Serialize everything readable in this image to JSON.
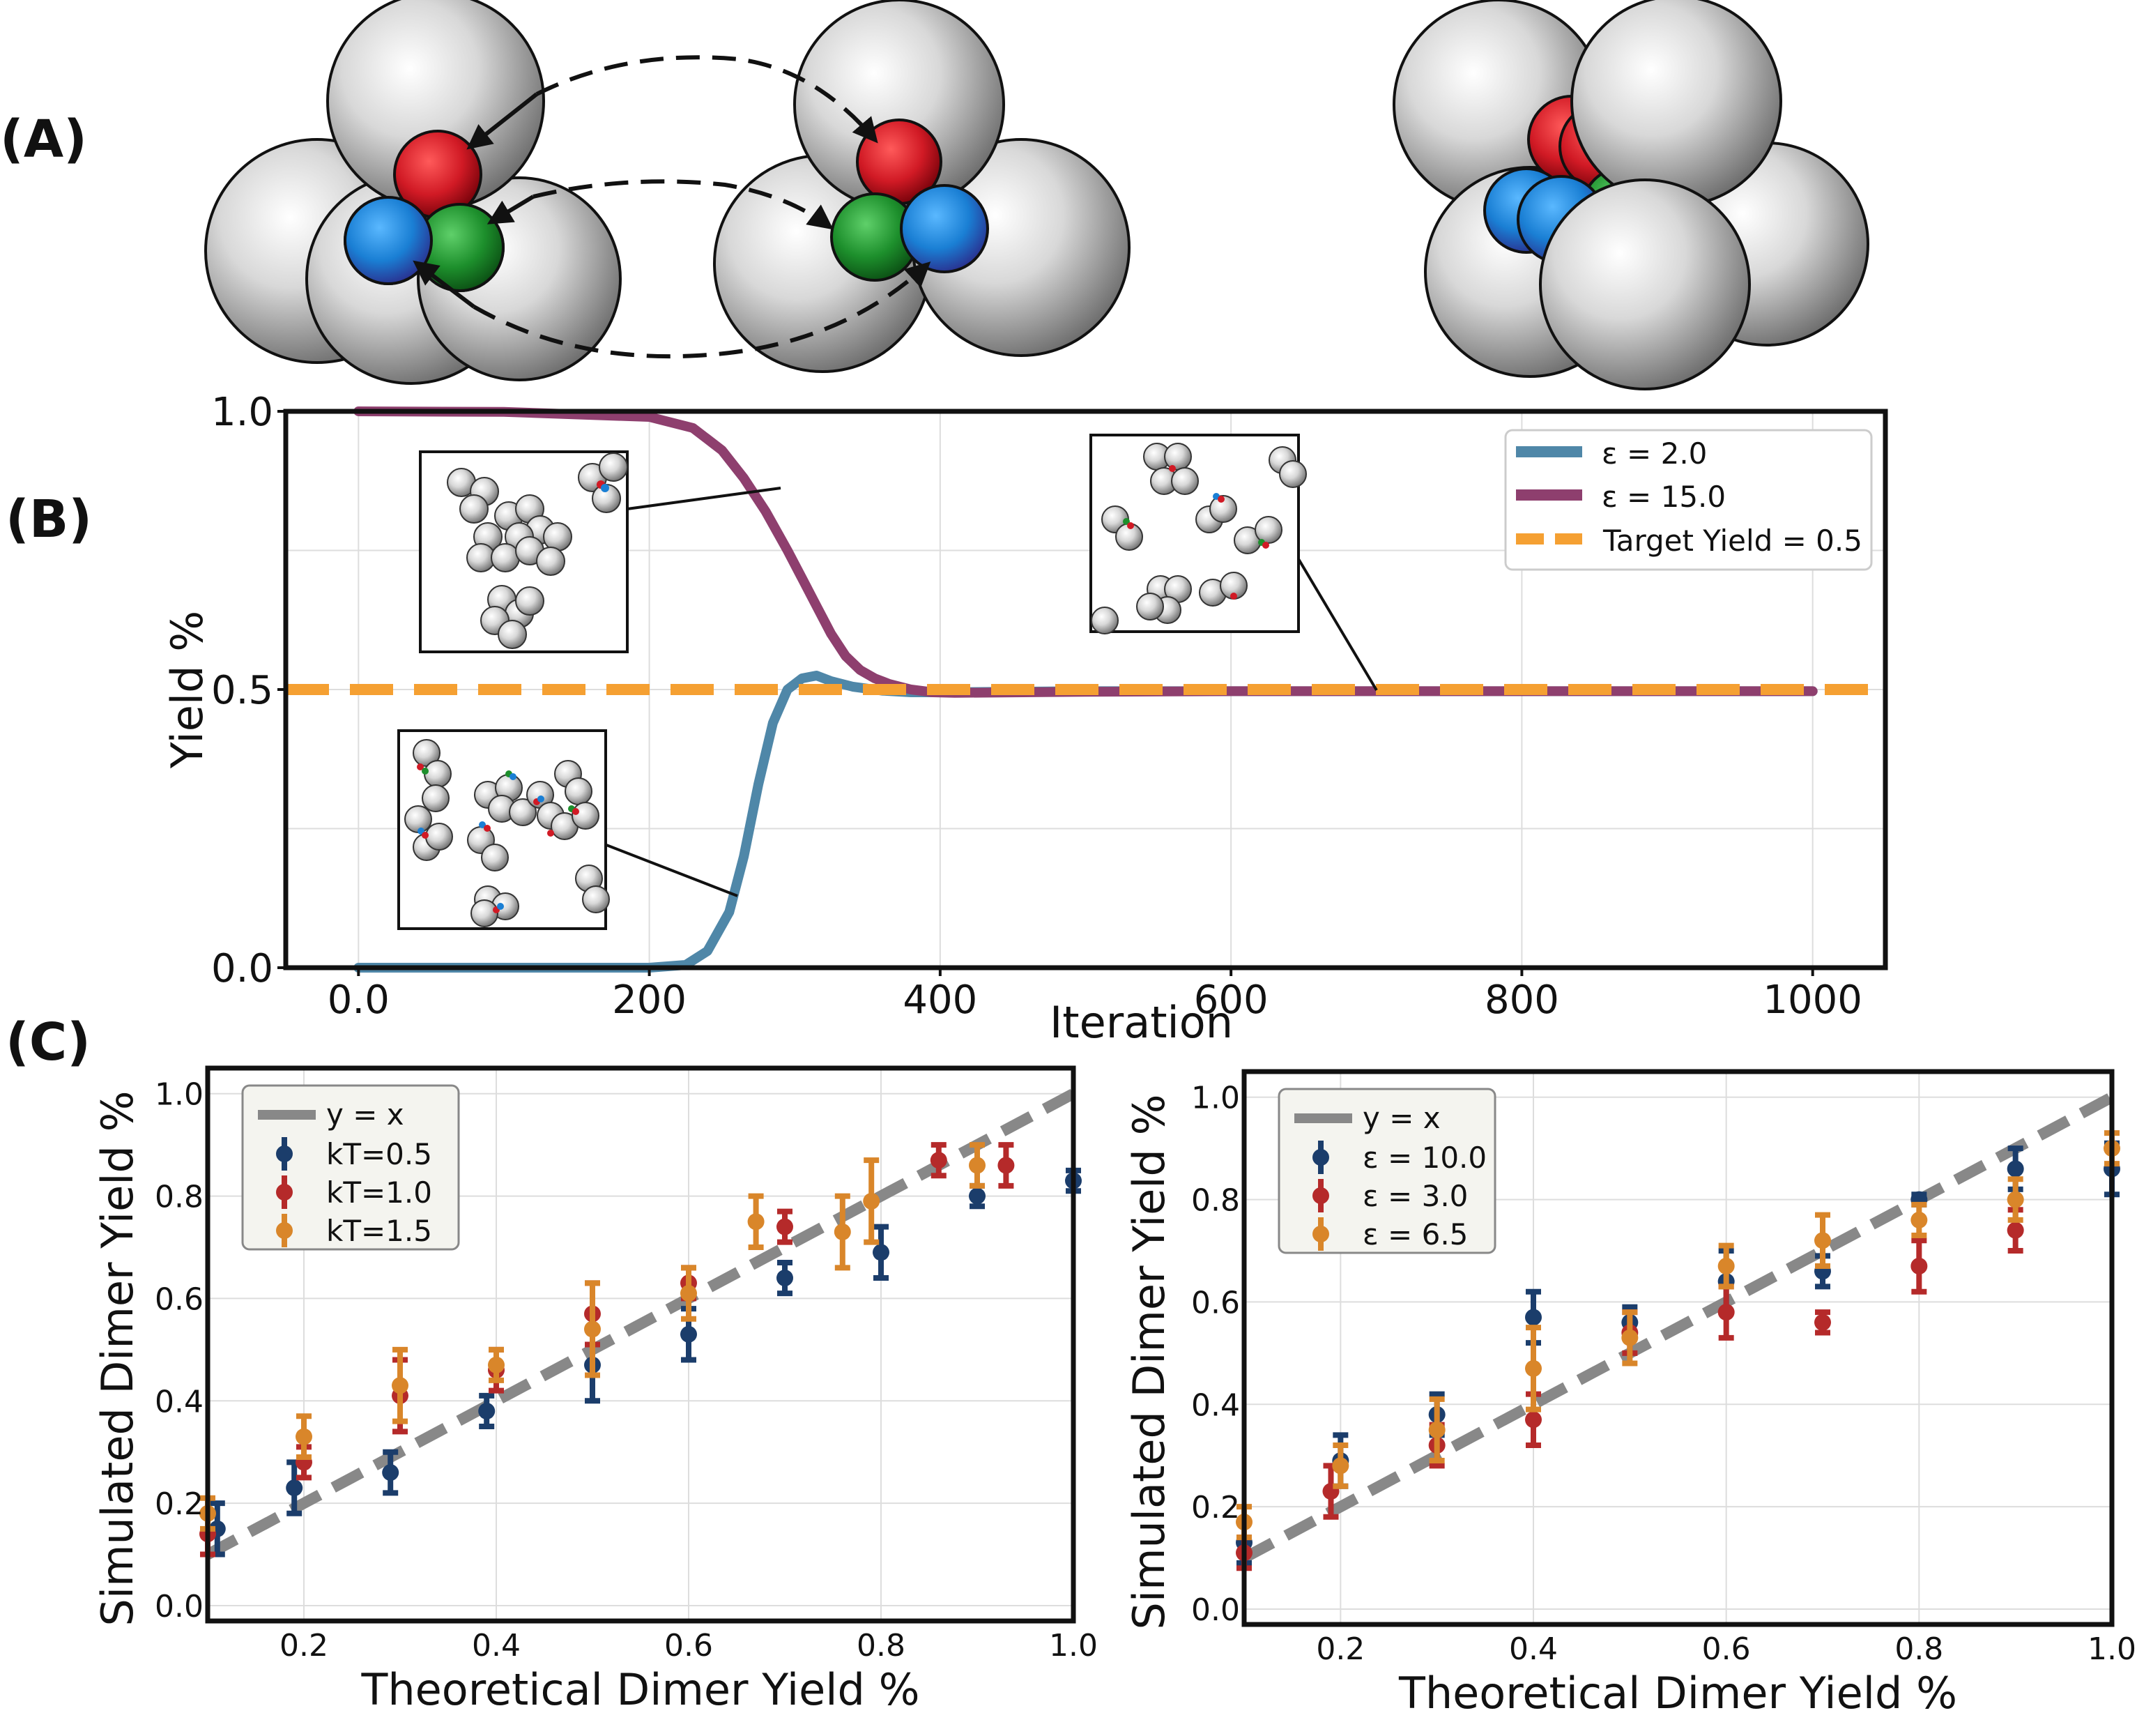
{
  "panels": {
    "a": "(A)",
    "b": "(B)",
    "c": "(C)"
  },
  "colors": {
    "blue_line": "#4f87a8",
    "purple_line": "#8e3f6e",
    "target": "#f5a032",
    "yx": "#888888",
    "navy": "#1b3d6b",
    "red": "#b52a2a",
    "orange": "#d9862a",
    "sphere_red": "#d11a25",
    "sphere_green": "#1d8f2c",
    "sphere_blue": "#1a7fd4"
  },
  "chart_data": [
    {
      "id": "B",
      "type": "line",
      "xlabel": "Iteration",
      "ylabel": "Yield %",
      "xlim": [
        -50,
        1050
      ],
      "ylim": [
        0,
        1
      ],
      "xticks": [
        0,
        200,
        400,
        600,
        800,
        1000
      ],
      "xtick_labels": [
        "0.0",
        "200",
        "400",
        "600",
        "800",
        "1000"
      ],
      "yticks": [
        0,
        0.5,
        1
      ],
      "ytick_labels": [
        "0.0",
        "0.5",
        "1.0"
      ],
      "grid": true,
      "legend_position": "top-right",
      "series": [
        {
          "name": "ε = 2.0",
          "x": [
            0,
            200,
            225,
            240,
            255,
            265,
            275,
            285,
            295,
            305,
            315,
            325,
            340,
            360,
            380,
            400,
            500,
            600,
            700,
            800,
            900,
            1000
          ],
          "y": [
            0,
            0.0,
            0.005,
            0.03,
            0.1,
            0.2,
            0.33,
            0.44,
            0.5,
            0.52,
            0.525,
            0.515,
            0.505,
            0.498,
            0.495,
            0.495,
            0.497,
            0.497,
            0.497,
            0.497,
            0.497,
            0.497
          ]
        },
        {
          "name": "ε = 15.0",
          "x": [
            0,
            100,
            200,
            230,
            250,
            265,
            280,
            295,
            305,
            315,
            325,
            335,
            345,
            355,
            365,
            380,
            395,
            410,
            500,
            600,
            700,
            800,
            900,
            1000
          ],
          "y": [
            1,
            0.999,
            0.99,
            0.97,
            0.93,
            0.88,
            0.82,
            0.75,
            0.7,
            0.65,
            0.6,
            0.56,
            0.535,
            0.52,
            0.51,
            0.5,
            0.495,
            0.494,
            0.496,
            0.497,
            0.497,
            0.497,
            0.497,
            0.497
          ]
        },
        {
          "name": "Target Yield = 0.5",
          "x": [
            -50,
            1050
          ],
          "y": [
            0.5,
            0.5
          ]
        }
      ]
    },
    {
      "id": "C1",
      "type": "scatter",
      "xlabel": "Theoretical Dimer Yield %",
      "ylabel": "Simulated Dimer Yield %",
      "xlim": [
        0.1,
        1.0
      ],
      "ylim": [
        -0.03,
        1.05
      ],
      "xticks": [
        0.2,
        0.4,
        0.6,
        0.8,
        1.0
      ],
      "xtick_labels": [
        "0.2",
        "0.4",
        "0.6",
        "0.8",
        "1.0"
      ],
      "yticks": [
        0,
        0.2,
        0.4,
        0.6,
        0.8,
        1.0
      ],
      "ytick_labels": [
        "0.0",
        "0.2",
        "0.4",
        "0.6",
        "0.8",
        "1.0"
      ],
      "grid": true,
      "legend_position": "top-left",
      "reference_line": {
        "name": "y = x",
        "x": [
          0.1,
          1.0
        ],
        "y": [
          0.1,
          1.0
        ]
      },
      "series": [
        {
          "name": "kT=0.5",
          "x": [
            0.11,
            0.19,
            0.29,
            0.39,
            0.5,
            0.6,
            0.7,
            0.8,
            0.9,
            1.0
          ],
          "y": [
            0.15,
            0.23,
            0.26,
            0.38,
            0.47,
            0.53,
            0.64,
            0.69,
            0.8,
            0.83
          ],
          "err": [
            0.05,
            0.05,
            0.04,
            0.03,
            0.07,
            0.05,
            0.03,
            0.05,
            0.02,
            0.02
          ]
        },
        {
          "name": "kT=1.0",
          "x": [
            0.1,
            0.2,
            0.3,
            0.4,
            0.5,
            0.6,
            0.7,
            0.86,
            0.93
          ],
          "y": [
            0.14,
            0.28,
            0.41,
            0.46,
            0.57,
            0.63,
            0.74,
            0.87,
            0.86
          ],
          "err": [
            0.04,
            0.03,
            0.07,
            0.04,
            0.06,
            0.03,
            0.03,
            0.03,
            0.04
          ]
        },
        {
          "name": "kT=1.5",
          "x": [
            0.1,
            0.2,
            0.3,
            0.4,
            0.5,
            0.6,
            0.67,
            0.76,
            0.79,
            0.9
          ],
          "y": [
            0.18,
            0.33,
            0.43,
            0.47,
            0.54,
            0.61,
            0.75,
            0.73,
            0.79,
            0.86
          ],
          "err": [
            0.03,
            0.04,
            0.07,
            0.03,
            0.09,
            0.05,
            0.05,
            0.07,
            0.08,
            0.04
          ]
        }
      ]
    },
    {
      "id": "C2",
      "type": "scatter",
      "xlabel": "Theoretical Dimer Yield %",
      "ylabel": "Simulated Dimer Yield %",
      "xlim": [
        0.1,
        1.0
      ],
      "ylim": [
        -0.03,
        1.05
      ],
      "xticks": [
        0.2,
        0.4,
        0.6,
        0.8,
        1.0
      ],
      "xtick_labels": [
        "0.2",
        "0.4",
        "0.6",
        "0.8",
        "1.0"
      ],
      "yticks": [
        0,
        0.2,
        0.4,
        0.6,
        0.8,
        1.0
      ],
      "ytick_labels": [
        "0.0",
        "0.2",
        "0.4",
        "0.6",
        "0.8",
        "1.0"
      ],
      "grid": true,
      "legend_position": "top-left",
      "reference_line": {
        "name": "y = x",
        "x": [
          0.1,
          1.0
        ],
        "y": [
          0.1,
          1.0
        ]
      },
      "series": [
        {
          "name": "ε = 10.0",
          "x": [
            0.1,
            0.2,
            0.3,
            0.4,
            0.5,
            0.6,
            0.7,
            0.8,
            0.9,
            1.0
          ],
          "y": [
            0.13,
            0.29,
            0.38,
            0.57,
            0.56,
            0.64,
            0.66,
            0.8,
            0.86,
            0.86
          ],
          "err": [
            0.04,
            0.05,
            0.04,
            0.05,
            0.03,
            0.06,
            0.03,
            0.01,
            0.04,
            0.05
          ]
        },
        {
          "name": "ε = 3.0",
          "x": [
            0.1,
            0.19,
            0.3,
            0.4,
            0.5,
            0.6,
            0.7,
            0.8,
            0.9
          ],
          "y": [
            0.11,
            0.23,
            0.32,
            0.37,
            0.54,
            0.58,
            0.56,
            0.67,
            0.74
          ],
          "err": [
            0.03,
            0.05,
            0.04,
            0.05,
            0.04,
            0.05,
            0.02,
            0.05,
            0.04
          ]
        },
        {
          "name": "ε = 6.5",
          "x": [
            0.1,
            0.2,
            0.3,
            0.4,
            0.5,
            0.6,
            0.7,
            0.8,
            0.9,
            1.0
          ],
          "y": [
            0.17,
            0.28,
            0.35,
            0.47,
            0.53,
            0.67,
            0.72,
            0.76,
            0.8,
            0.9
          ],
          "err": [
            0.03,
            0.04,
            0.06,
            0.08,
            0.05,
            0.04,
            0.05,
            0.03,
            0.04,
            0.03
          ]
        }
      ]
    }
  ]
}
